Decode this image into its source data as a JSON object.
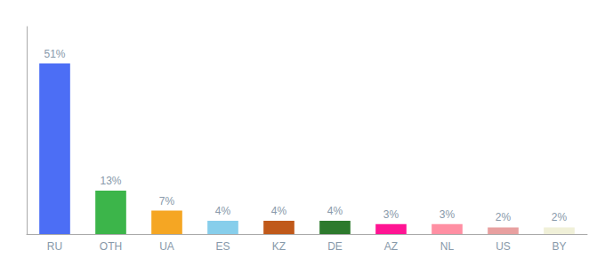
{
  "chart_data": {
    "type": "bar",
    "categories": [
      "RU",
      "OTH",
      "UA",
      "ES",
      "KZ",
      "DE",
      "AZ",
      "NL",
      "US",
      "BY"
    ],
    "values": [
      51,
      13,
      7,
      4,
      4,
      4,
      3,
      3,
      2,
      2
    ],
    "value_labels": [
      "51%",
      "13%",
      "7%",
      "4%",
      "4%",
      "4%",
      "3%",
      "3%",
      "2%",
      "2%"
    ],
    "colors": [
      "#4c6ef5",
      "#3cb54a",
      "#f5a623",
      "#87ceeb",
      "#c0591a",
      "#2d7a2d",
      "#ff1493",
      "#ff8fa3",
      "#e8a0a0",
      "#f0f0d8"
    ],
    "ylim": [
      0,
      62
    ],
    "data_labels": true,
    "tick_labels": "x",
    "grid": false
  }
}
